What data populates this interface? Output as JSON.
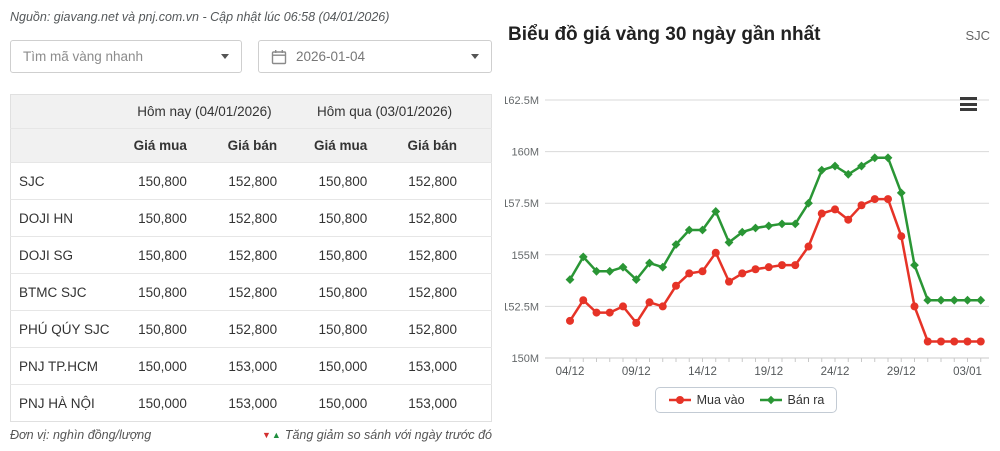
{
  "source_line": "Nguồn: giavang.net và pnj.com.vn - Cập nhật lúc 06:58 (04/01/2026)",
  "controls": {
    "search_placeholder": "Tìm mã vàng nhanh",
    "date_value": "2026-01-04"
  },
  "table": {
    "group_headers": [
      "Hôm nay (04/01/2026)",
      "Hôm qua (03/01/2026)"
    ],
    "sub_headers": [
      "Giá mua",
      "Giá bán",
      "Giá mua",
      "Giá bán"
    ],
    "rows": [
      {
        "name": "SJC",
        "values": [
          "150,800",
          "152,800",
          "150,800",
          "152,800"
        ]
      },
      {
        "name": "DOJI HN",
        "values": [
          "150,800",
          "152,800",
          "150,800",
          "152,800"
        ]
      },
      {
        "name": "DOJI SG",
        "values": [
          "150,800",
          "152,800",
          "150,800",
          "152,800"
        ]
      },
      {
        "name": "BTMC SJC",
        "values": [
          "150,800",
          "152,800",
          "150,800",
          "152,800"
        ]
      },
      {
        "name": "PHÚ QÚY SJC",
        "values": [
          "150,800",
          "152,800",
          "150,800",
          "152,800"
        ]
      },
      {
        "name": "PNJ TP.HCM",
        "values": [
          "150,000",
          "153,000",
          "150,000",
          "153,000"
        ]
      },
      {
        "name": "PNJ HÀ NỘI",
        "values": [
          "150,000",
          "153,000",
          "150,000",
          "153,000"
        ]
      }
    ],
    "footnote_left": "Đơn vị: nghìn đồng/lượng",
    "footnote_right": "Tăng giảm so sánh với ngày trước đó",
    "triangle_down": "▼",
    "triangle_up": "▲"
  },
  "chart": {
    "title": "Biểu đồ giá vàng 30 ngày gần nhất",
    "badge": "SJC"
  },
  "chart_data": {
    "type": "line",
    "title": "Biểu đồ giá vàng 30 ngày gần nhất",
    "x": [
      "04/12",
      "05/12",
      "06/12",
      "07/12",
      "08/12",
      "09/12",
      "10/12",
      "11/12",
      "12/12",
      "13/12",
      "14/12",
      "15/12",
      "16/12",
      "17/12",
      "18/12",
      "19/12",
      "20/12",
      "21/12",
      "22/12",
      "23/12",
      "24/12",
      "25/12",
      "26/12",
      "27/12",
      "28/12",
      "29/12",
      "30/12",
      "31/12",
      "01/01",
      "02/01",
      "03/01",
      "04/01"
    ],
    "series": [
      {
        "name": "Mua vào",
        "color": "#e63327",
        "marker": "circle",
        "values": [
          151.8,
          152.8,
          152.2,
          152.2,
          152.5,
          151.7,
          152.7,
          152.5,
          153.5,
          154.1,
          154.2,
          155.1,
          153.7,
          154.1,
          154.3,
          154.4,
          154.5,
          154.5,
          155.4,
          157.0,
          157.2,
          156.7,
          157.4,
          157.7,
          157.7,
          155.9,
          152.5,
          150.8,
          150.8,
          150.8,
          150.8,
          150.8
        ]
      },
      {
        "name": "Bán ra",
        "color": "#2a9635",
        "marker": "diamond",
        "values": [
          153.8,
          154.9,
          154.2,
          154.2,
          154.4,
          153.8,
          154.6,
          154.4,
          155.5,
          156.2,
          156.2,
          157.1,
          155.6,
          156.1,
          156.3,
          156.4,
          156.5,
          156.5,
          157.5,
          159.1,
          159.3,
          158.9,
          159.3,
          159.7,
          159.7,
          158.0,
          154.5,
          152.8,
          152.8,
          152.8,
          152.8,
          152.8
        ]
      }
    ],
    "ylim": [
      150,
      162.5
    ],
    "ytick_values": [
      150,
      152.5,
      155,
      157.5,
      160,
      162.5
    ],
    "ytick_labels": [
      "150M",
      "152.5M",
      "155M",
      "157.5M",
      "160M",
      "162.5M"
    ],
    "xtick_indices": [
      0,
      5,
      10,
      15,
      20,
      25,
      30
    ],
    "xtick_labels": [
      "04/12",
      "09/12",
      "14/12",
      "19/12",
      "24/12",
      "29/12",
      "03/01"
    ],
    "grid": true,
    "legend_position": "bottom"
  },
  "colors": {
    "buy_line": "#e63327",
    "sell_line": "#2a9635",
    "header_bg": "#f1f1f1",
    "grid_line": "#d9d9d9",
    "axis_line": "#c9c9c9"
  }
}
